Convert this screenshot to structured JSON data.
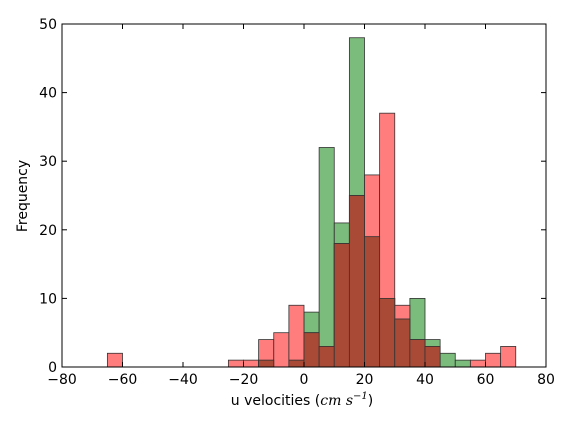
{
  "chart_data": {
    "type": "bar",
    "title": "",
    "xlabel_prefix": "u velocities",
    "xlabel_unit": "cm s",
    "xlabel_exponent": "−1",
    "ylabel": "Frequency",
    "xlim": [
      -80,
      80
    ],
    "ylim": [
      0,
      50
    ],
    "xticks": [
      -80,
      -60,
      -40,
      -20,
      0,
      20,
      40,
      60,
      80
    ],
    "yticks": [
      0,
      10,
      20,
      30,
      40,
      50
    ],
    "bin_width": 5,
    "grid": false,
    "legend": "none",
    "bin_starts": [
      -65,
      -25,
      -20,
      -15,
      -10,
      -5,
      0,
      5,
      10,
      15,
      20,
      25,
      30,
      35,
      40,
      45,
      50,
      55,
      60,
      65
    ],
    "series": [
      {
        "color": "#5aaa5a",
        "values": [
          0,
          0,
          0,
          1,
          0,
          1,
          8,
          32,
          21,
          48,
          19,
          10,
          7,
          10,
          4,
          2,
          1,
          0,
          0,
          0
        ]
      },
      {
        "color": "#ff6666",
        "values": [
          2,
          1,
          1,
          4,
          5,
          9,
          5,
          3,
          18,
          25,
          28,
          37,
          9,
          4,
          3,
          0,
          0,
          1,
          2,
          3
        ]
      }
    ],
    "overlap_color": "#a84a36"
  }
}
